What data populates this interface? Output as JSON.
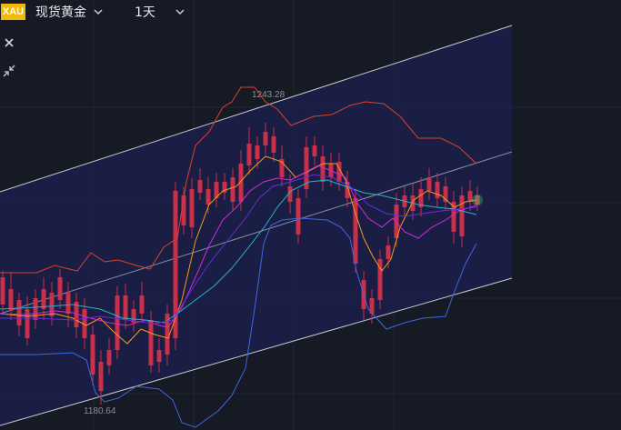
{
  "header": {
    "symbol_badge": "XAU",
    "symbol_name": "现货黄金",
    "timeframe": "1天"
  },
  "toolbar": {
    "close_icon": "close-icon",
    "collapse_icon": "collapse-icon"
  },
  "chart_data": {
    "type": "candlestick",
    "annotations": {
      "high": "1243.28",
      "low": "1180.64"
    },
    "colors": {
      "up": "#2ea46a",
      "down": "#c9304a",
      "ma_orange": "#f29b1d",
      "ma_magenta": "#d42ad6",
      "ma_cyan": "#27b4c9",
      "ma_purple": "#6b2bd8",
      "boll_upper": "#d9432c",
      "boll_lower": "#3d68e0",
      "channel": "#c8c9d0",
      "channel_fill": "#1b1e4a"
    }
  }
}
